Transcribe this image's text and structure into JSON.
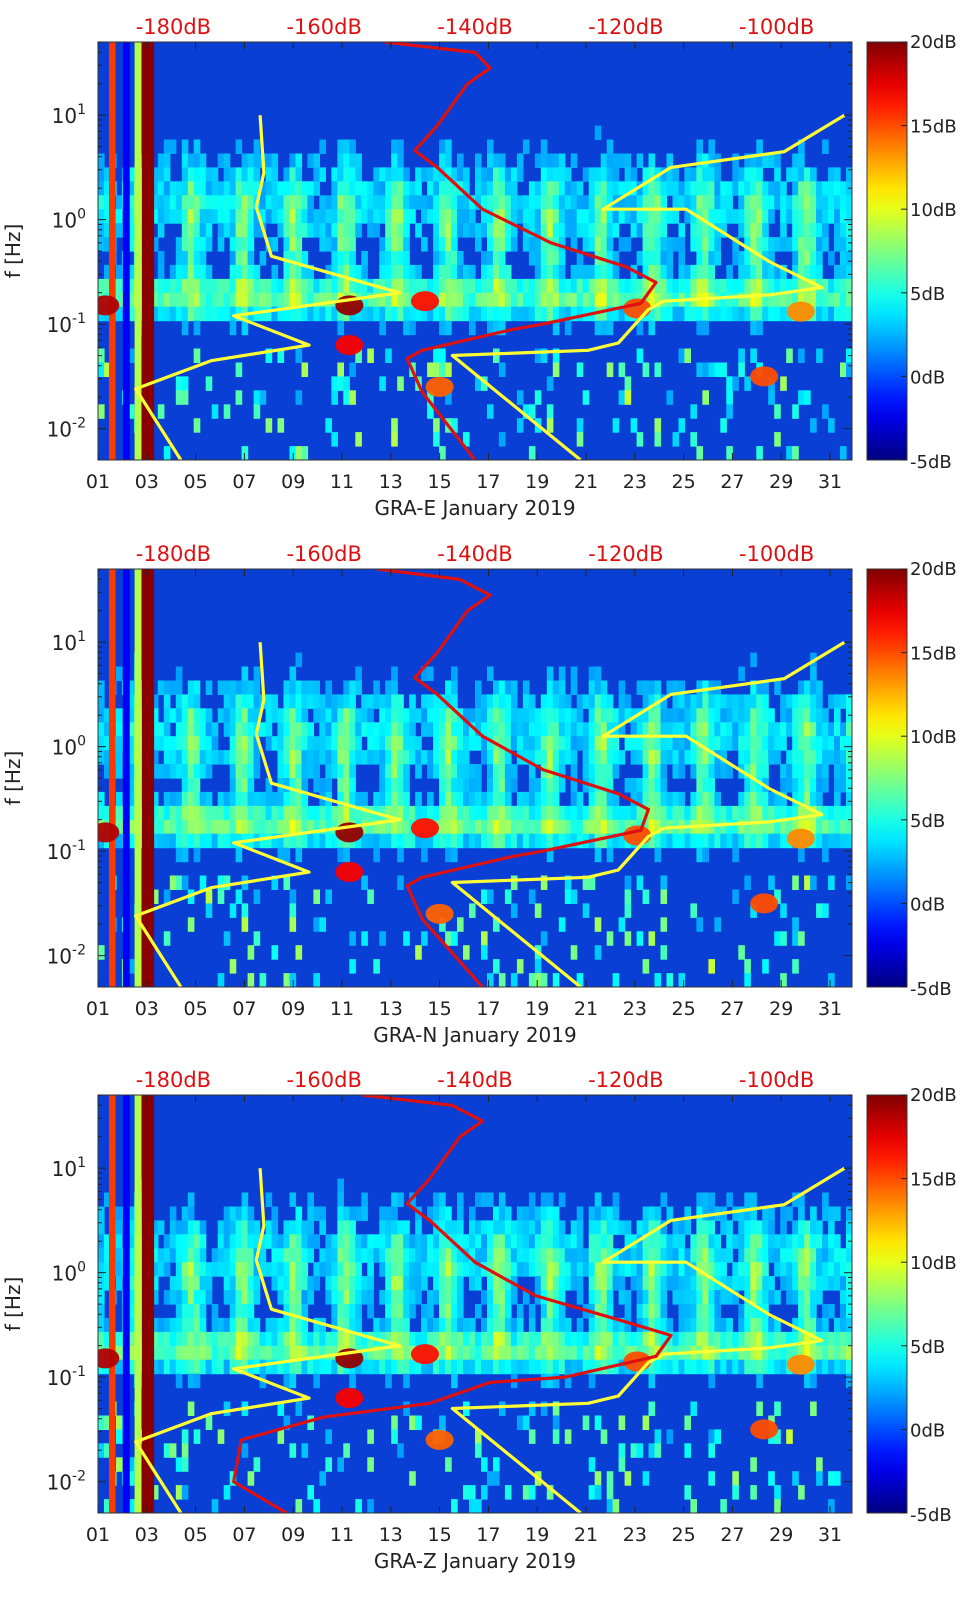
{
  "chart_data": [
    {
      "type": "heatmap",
      "station": "GRA-E",
      "xlabel": "GRA-E January 2019",
      "ylabel": "f [Hz]",
      "x_ticks": [
        "01",
        "03",
        "05",
        "07",
        "09",
        "11",
        "13",
        "15",
        "17",
        "19",
        "21",
        "23",
        "25",
        "27",
        "29",
        "31"
      ],
      "x_range_days": [
        1,
        31.9
      ],
      "y_ticks": [
        "10^-2",
        "10^-1",
        "10^0",
        "10^1"
      ],
      "y_scale": "log",
      "y_range_log10": [
        -2.3,
        1.7
      ],
      "top_axis_ticks": [
        "-180dB",
        "-160dB",
        "-140dB",
        "-120dB",
        "-100dB"
      ],
      "top_axis_range_db": [
        -190,
        -90
      ],
      "colorbar_ticks": [
        "20dB",
        "15dB",
        "10dB",
        "5dB",
        "0dB",
        "-5dB"
      ],
      "colorbar_range_db": [
        -5,
        20
      ],
      "colormap": "jet",
      "overlay_curves": [
        {
          "color": "#ffff33",
          "points_db_log10f": [
            [
              -179,
              -2.3
            ],
            [
              -185,
              -1.62
            ],
            [
              -175,
              -1.35
            ],
            [
              -162,
              -1.2
            ],
            [
              -172,
              -0.92
            ],
            [
              -150,
              -0.7
            ],
            [
              -167,
              -0.35
            ],
            [
              -169,
              0.12
            ],
            [
              -168,
              0.45
            ],
            [
              -168.5,
              1.0
            ]
          ]
        },
        {
          "color": "#ffff33",
          "points_db_log10f": [
            [
              -126,
              -2.3
            ],
            [
              -143,
              -1.3
            ],
            [
              -125,
              -1.25
            ],
            [
              -121,
              -1.18
            ],
            [
              -117,
              -0.86
            ],
            [
              -115,
              -0.78
            ],
            [
              -101,
              -0.72
            ],
            [
              -94,
              -0.65
            ],
            [
              -101,
              -0.4
            ],
            [
              -112,
              0.1
            ],
            [
              -123,
              0.1
            ],
            [
              -114,
              0.5
            ],
            [
              -99,
              0.65
            ],
            [
              -91,
              1.0
            ]
          ]
        },
        {
          "color": "#dd1111",
          "points_db_log10f": [
            [
              -140,
              -2.3
            ],
            [
              -147,
              -1.65
            ],
            [
              -149,
              -1.33
            ],
            [
              -147,
              -1.25
            ],
            [
              -135,
              -1.05
            ],
            [
              -131,
              -1.0
            ],
            [
              -118,
              -0.8
            ],
            [
              -116,
              -0.6
            ],
            [
              -120,
              -0.45
            ],
            [
              -130,
              -0.22
            ],
            [
              -139,
              0.1
            ],
            [
              -145,
              0.5
            ],
            [
              -148,
              0.66
            ],
            [
              -145,
              0.9
            ],
            [
              -143,
              1.1
            ],
            [
              -141,
              1.3
            ],
            [
              -138,
              1.45
            ],
            [
              -140,
              1.6
            ],
            [
              -152,
              1.7
            ]
          ]
        }
      ]
    },
    {
      "type": "heatmap",
      "station": "GRA-N",
      "xlabel": "GRA-N January 2019",
      "ylabel": "f [Hz]",
      "x_ticks": [
        "01",
        "03",
        "05",
        "07",
        "09",
        "11",
        "13",
        "15",
        "17",
        "19",
        "21",
        "23",
        "25",
        "27",
        "29",
        "31"
      ],
      "x_range_days": [
        1,
        31.9
      ],
      "y_ticks": [
        "10^-2",
        "10^-1",
        "10^0",
        "10^1"
      ],
      "y_scale": "log",
      "y_range_log10": [
        -2.3,
        1.7
      ],
      "top_axis_ticks": [
        "-180dB",
        "-160dB",
        "-140dB",
        "-120dB",
        "-100dB"
      ],
      "top_axis_range_db": [
        -190,
        -90
      ],
      "colorbar_ticks": [
        "20dB",
        "15dB",
        "10dB",
        "5dB",
        "0dB",
        "-5dB"
      ],
      "colorbar_range_db": [
        -5,
        20
      ],
      "colormap": "jet",
      "overlay_curves": [
        {
          "color": "#ffff33",
          "points_db_log10f": [
            [
              -179,
              -2.3
            ],
            [
              -185,
              -1.62
            ],
            [
              -175,
              -1.35
            ],
            [
              -162,
              -1.2
            ],
            [
              -172,
              -0.92
            ],
            [
              -150,
              -0.7
            ],
            [
              -167,
              -0.35
            ],
            [
              -169,
              0.12
            ],
            [
              -168,
              0.45
            ],
            [
              -168.5,
              1.0
            ]
          ]
        },
        {
          "color": "#ffff33",
          "points_db_log10f": [
            [
              -126,
              -2.3
            ],
            [
              -143,
              -1.3
            ],
            [
              -125,
              -1.25
            ],
            [
              -121,
              -1.18
            ],
            [
              -117,
              -0.86
            ],
            [
              -115,
              -0.78
            ],
            [
              -101,
              -0.72
            ],
            [
              -94,
              -0.65
            ],
            [
              -101,
              -0.4
            ],
            [
              -112,
              0.1
            ],
            [
              -123,
              0.1
            ],
            [
              -114,
              0.5
            ],
            [
              -99,
              0.65
            ],
            [
              -91,
              1.0
            ]
          ]
        },
        {
          "color": "#dd1111",
          "points_db_log10f": [
            [
              -139,
              -2.3
            ],
            [
              -147,
              -1.65
            ],
            [
              -149,
              -1.33
            ],
            [
              -147,
              -1.25
            ],
            [
              -135,
              -1.05
            ],
            [
              -131,
              -1.0
            ],
            [
              -118,
              -0.8
            ],
            [
              -117,
              -0.6
            ],
            [
              -121,
              -0.45
            ],
            [
              -131,
              -0.22
            ],
            [
              -139,
              0.1
            ],
            [
              -145,
              0.5
            ],
            [
              -148,
              0.66
            ],
            [
              -145,
              0.9
            ],
            [
              -143,
              1.1
            ],
            [
              -141,
              1.3
            ],
            [
              -138,
              1.45
            ],
            [
              -142,
              1.6
            ],
            [
              -153,
              1.7
            ]
          ]
        }
      ]
    },
    {
      "type": "heatmap",
      "station": "GRA-Z",
      "xlabel": "GRA-Z January 2019",
      "ylabel": "f [Hz]",
      "x_ticks": [
        "01",
        "03",
        "05",
        "07",
        "09",
        "11",
        "13",
        "15",
        "17",
        "19",
        "21",
        "23",
        "25",
        "27",
        "29",
        "31"
      ],
      "x_range_days": [
        1,
        31.9
      ],
      "y_ticks": [
        "10^-2",
        "10^-1",
        "10^0",
        "10^1"
      ],
      "y_scale": "log",
      "y_range_log10": [
        -2.3,
        1.7
      ],
      "top_axis_ticks": [
        "-180dB",
        "-160dB",
        "-140dB",
        "-120dB",
        "-100dB"
      ],
      "top_axis_range_db": [
        -190,
        -90
      ],
      "colorbar_ticks": [
        "20dB",
        "15dB",
        "10dB",
        "5dB",
        "0dB",
        "-5dB"
      ],
      "colorbar_range_db": [
        -5,
        20
      ],
      "colormap": "jet",
      "overlay_curves": [
        {
          "color": "#ffff33",
          "points_db_log10f": [
            [
              -179,
              -2.3
            ],
            [
              -185,
              -1.62
            ],
            [
              -175,
              -1.35
            ],
            [
              -162,
              -1.2
            ],
            [
              -172,
              -0.92
            ],
            [
              -150,
              -0.7
            ],
            [
              -167,
              -0.35
            ],
            [
              -169,
              0.12
            ],
            [
              -168,
              0.45
            ],
            [
              -168.5,
              1.0
            ]
          ]
        },
        {
          "color": "#ffff33",
          "points_db_log10f": [
            [
              -126,
              -2.3
            ],
            [
              -143,
              -1.3
            ],
            [
              -125,
              -1.25
            ],
            [
              -121,
              -1.18
            ],
            [
              -117,
              -0.86
            ],
            [
              -115,
              -0.78
            ],
            [
              -101,
              -0.72
            ],
            [
              -94,
              -0.65
            ],
            [
              -101,
              -0.4
            ],
            [
              -112,
              0.1
            ],
            [
              -123,
              0.1
            ],
            [
              -114,
              0.5
            ],
            [
              -99,
              0.65
            ],
            [
              -91,
              1.0
            ]
          ]
        },
        {
          "color": "#dd1111",
          "points_db_log10f": [
            [
              -165,
              -2.3
            ],
            [
              -172,
              -2.0
            ],
            [
              -171,
              -1.6
            ],
            [
              -160,
              -1.38
            ],
            [
              -146,
              -1.25
            ],
            [
              -138,
              -1.05
            ],
            [
              -128,
              -1.0
            ],
            [
              -116,
              -0.8
            ],
            [
              -114,
              -0.6
            ],
            [
              -121,
              -0.45
            ],
            [
              -132,
              -0.22
            ],
            [
              -140,
              0.1
            ],
            [
              -146,
              0.5
            ],
            [
              -149,
              0.66
            ],
            [
              -146,
              0.9
            ],
            [
              -144,
              1.1
            ],
            [
              -142,
              1.3
            ],
            [
              -139,
              1.45
            ],
            [
              -143,
              1.6
            ],
            [
              -155,
              1.7
            ]
          ]
        }
      ]
    }
  ]
}
